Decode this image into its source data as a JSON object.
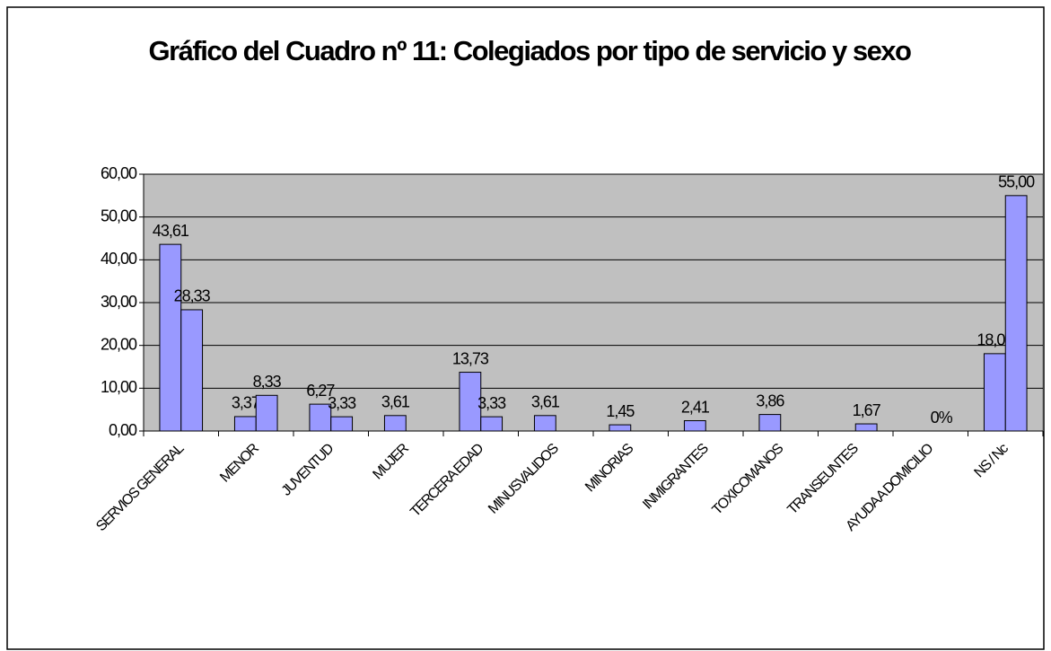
{
  "chart_data": {
    "type": "bar",
    "title": "Gráfico del Cuadro nº 11: Colegiados por tipo de servicio y sexo",
    "categories": [
      "SERVIOS GENERAL",
      "MENOR",
      "JUVENTUD",
      "MUJER",
      "TERCERA EDAD",
      "MINUSVALIDOS",
      "MINORIAS",
      "INMIGRANTES",
      "TOXICOMANOS",
      "TRANSEUNTES",
      "AYUDA A DOMICILIO",
      "NS / Nc"
    ],
    "series": [
      {
        "color": "#9999ff",
        "values": [
          43.61,
          3.37,
          6.27,
          3.61,
          13.73,
          3.61,
          1.45,
          2.41,
          3.86,
          null,
          null,
          18.07
        ],
        "value_labels": [
          "43,61",
          "3,37",
          "6,27",
          "3,61",
          "13,73",
          "3,61",
          "1,45",
          "2,41",
          "3,86",
          null,
          null,
          "18,07"
        ]
      },
      {
        "color": "#9999ff",
        "values": [
          28.33,
          8.33,
          3.33,
          null,
          3.33,
          null,
          null,
          null,
          null,
          1.67,
          0,
          55.0
        ],
        "value_labels": [
          "28,33",
          "8,33",
          "3,33",
          null,
          "3,33",
          null,
          null,
          null,
          null,
          "1,67",
          "0%",
          "55,00"
        ]
      }
    ],
    "ylim": [
      0,
      60
    ],
    "yticks": [
      {
        "value": 0,
        "label": "0,00"
      },
      {
        "value": 10,
        "label": "10,00"
      },
      {
        "value": 20,
        "label": "20,00"
      },
      {
        "value": 30,
        "label": "30,00"
      },
      {
        "value": 40,
        "label": "40,00"
      },
      {
        "value": 50,
        "label": "50,00"
      },
      {
        "value": 60,
        "label": "60,00"
      }
    ],
    "grid": true,
    "plot_background": "#c0c0c0"
  }
}
